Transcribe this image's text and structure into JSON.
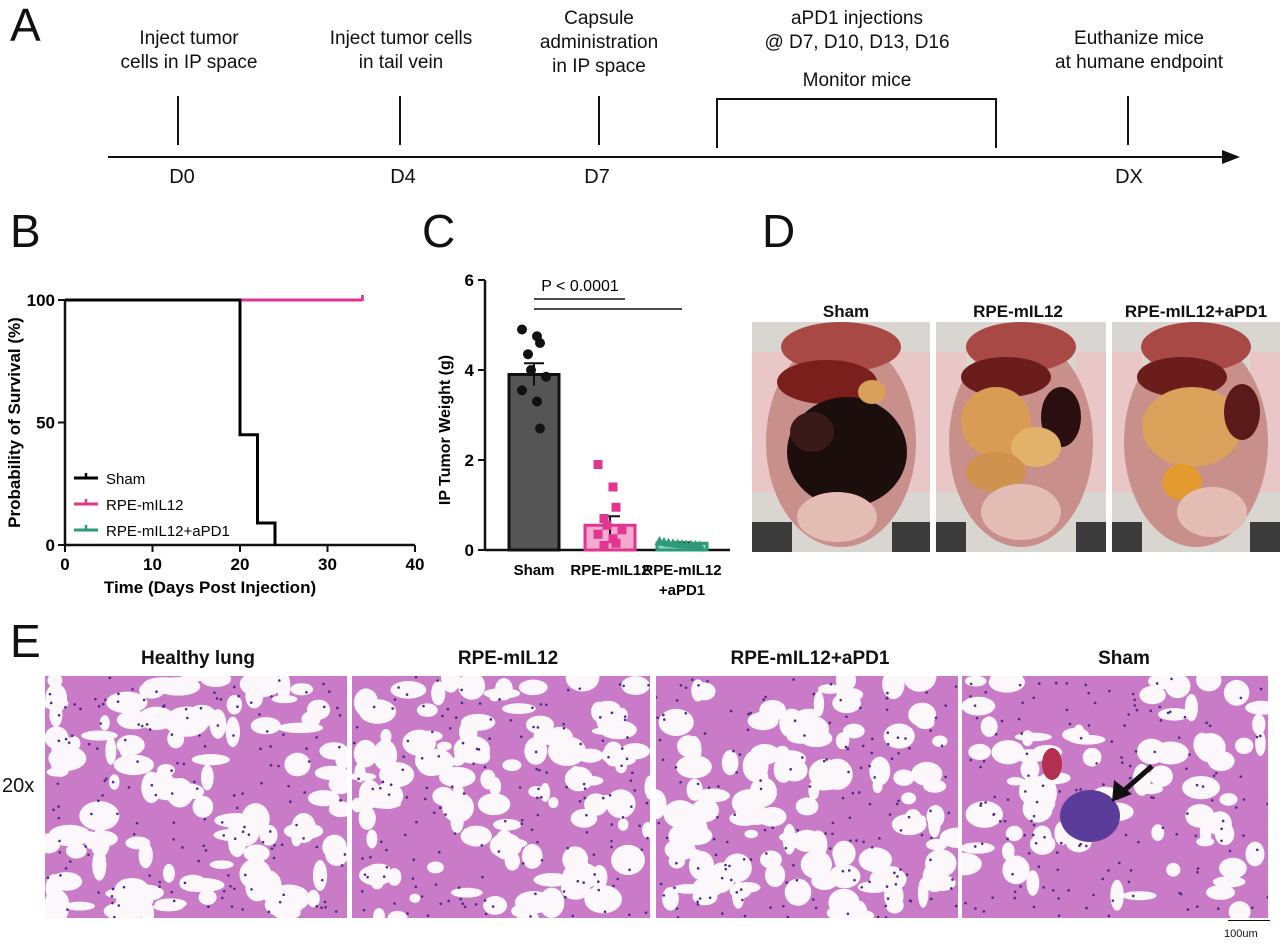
{
  "panels": {
    "a": "A",
    "b": "B",
    "c": "C",
    "d": "D",
    "e": "E"
  },
  "timeline": {
    "events": [
      {
        "line1": "Inject tumor",
        "line2": "cells in IP space",
        "day": "D0"
      },
      {
        "line1": "Inject tumor cells",
        "line2": "in tail vein",
        "day": "D4"
      },
      {
        "line1": "Capsule",
        "line2": "administration",
        "line3": "in IP space",
        "day": "D7"
      },
      {
        "line1": "aPD1 injections",
        "line2": "@ D7, D10, D13, D16",
        "bracket_label": "Monitor mice"
      },
      {
        "line1": "Euthanize mice",
        "line2": "at humane endpoint",
        "day": "DX"
      }
    ]
  },
  "chart_data": [
    {
      "type": "line",
      "panel": "B",
      "xlabel": "Time (Days Post Injection)",
      "ylabel": "Probability of Survival (%)",
      "xlim": [
        0,
        40
      ],
      "ylim": [
        0,
        100
      ],
      "xticks": [
        "0",
        "10",
        "20",
        "30",
        "40"
      ],
      "yticks": [
        "0",
        "50",
        "100"
      ],
      "legend_position": "bottom-left",
      "series": [
        {
          "name": "Sham",
          "color": "#000000",
          "x": [
            0,
            20,
            20,
            22,
            22,
            24,
            24
          ],
          "y": [
            100,
            100,
            45,
            45,
            9,
            9,
            0
          ]
        },
        {
          "name": "RPE-mIL12",
          "color": "#e0368f",
          "x": [
            0,
            34
          ],
          "y": [
            100,
            100
          ]
        },
        {
          "name": "RPE-mIL12+aPD1",
          "color": "#2e9a78",
          "x": [
            0,
            34
          ],
          "y": [
            100,
            100
          ]
        }
      ]
    },
    {
      "type": "bar",
      "panel": "C",
      "ylabel": "IP Tumor Weight (g)",
      "ylim": [
        0,
        6
      ],
      "yticks": [
        "0",
        "2",
        "4",
        "6"
      ],
      "categories": [
        "Sham",
        "RPE-mIL12",
        "RPE-mIL12\n+aPD1"
      ],
      "category_lines": [
        [
          "Sham"
        ],
        [
          "RPE-mIL12"
        ],
        [
          "RPE-mIL12",
          "+aPD1"
        ]
      ],
      "values": [
        3.9,
        0.55,
        0.15
      ],
      "sem": [
        0.25,
        0.2,
        0.02
      ],
      "colors": [
        "#555555",
        "#e0368f",
        "#2e9a78"
      ],
      "points": [
        [
          4.9,
          4.75,
          4.6,
          4.35,
          4.0,
          3.85,
          3.55,
          3.3,
          2.7
        ],
        [
          1.9,
          1.4,
          0.95,
          0.7,
          0.55,
          0.45,
          0.35,
          0.25,
          0.15,
          0.1
        ],
        [
          0.2,
          0.18,
          0.16,
          0.15,
          0.14,
          0.13,
          0.12,
          0.12,
          0.11,
          0.1
        ]
      ],
      "annotation": "P < 0.0001"
    }
  ],
  "photos": {
    "titles": [
      "Sham",
      "RPE-mIL12",
      "RPE-mIL12+aPD1"
    ]
  },
  "histology": {
    "titles": [
      "Healthy lung",
      "RPE-mIL12",
      "RPE-mIL12+aPD1",
      "Sham"
    ],
    "magnification": "20x",
    "scale_bar": "100um"
  }
}
